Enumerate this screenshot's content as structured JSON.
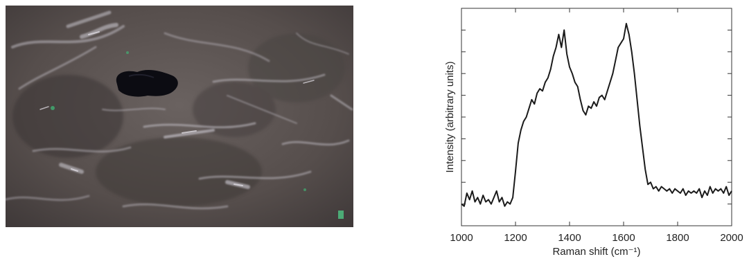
{
  "chart_data": {
    "type": "line",
    "xlabel": "Raman shift (cm⁻¹)",
    "ylabel": "Intensity (arbitrary units)",
    "xlim": [
      1000,
      2000
    ],
    "ylim": [
      0,
      1
    ],
    "x_ticks": [
      1000,
      1200,
      1400,
      1600,
      1800,
      2000
    ],
    "x_tick_labels": [
      "1000",
      "1200",
      "1400",
      "1600",
      "1800",
      "2000"
    ],
    "y_ticks": [
      0.1,
      0.2,
      0.3,
      0.4,
      0.5,
      0.6,
      0.7,
      0.8,
      0.9
    ],
    "y_tick_labels_shown": false,
    "grid": false,
    "series": [
      {
        "color": "#1a1a1a",
        "x": [
          1000,
          1010,
          1020,
          1030,
          1040,
          1050,
          1060,
          1070,
          1080,
          1090,
          1100,
          1110,
          1120,
          1130,
          1140,
          1150,
          1160,
          1170,
          1180,
          1190,
          1200,
          1210,
          1220,
          1230,
          1240,
          1250,
          1260,
          1270,
          1280,
          1290,
          1300,
          1310,
          1320,
          1330,
          1340,
          1350,
          1360,
          1370,
          1380,
          1390,
          1400,
          1410,
          1420,
          1430,
          1440,
          1450,
          1460,
          1470,
          1480,
          1490,
          1500,
          1510,
          1520,
          1530,
          1540,
          1550,
          1560,
          1570,
          1580,
          1590,
          1600,
          1610,
          1620,
          1630,
          1640,
          1650,
          1660,
          1670,
          1680,
          1690,
          1700,
          1710,
          1720,
          1730,
          1740,
          1750,
          1760,
          1770,
          1780,
          1790,
          1800,
          1810,
          1820,
          1830,
          1840,
          1850,
          1860,
          1870,
          1880,
          1890,
          1900,
          1910,
          1920,
          1930,
          1940,
          1950,
          1960,
          1970,
          1980,
          1990,
          2000
        ],
        "y": [
          0.1,
          0.09,
          0.15,
          0.12,
          0.16,
          0.11,
          0.13,
          0.1,
          0.14,
          0.11,
          0.12,
          0.1,
          0.13,
          0.16,
          0.11,
          0.13,
          0.09,
          0.11,
          0.1,
          0.13,
          0.25,
          0.38,
          0.44,
          0.48,
          0.5,
          0.54,
          0.58,
          0.56,
          0.61,
          0.63,
          0.62,
          0.66,
          0.68,
          0.72,
          0.78,
          0.82,
          0.88,
          0.82,
          0.9,
          0.79,
          0.73,
          0.7,
          0.66,
          0.64,
          0.58,
          0.53,
          0.51,
          0.55,
          0.54,
          0.57,
          0.55,
          0.59,
          0.6,
          0.58,
          0.62,
          0.66,
          0.7,
          0.76,
          0.82,
          0.84,
          0.86,
          0.93,
          0.88,
          0.8,
          0.7,
          0.58,
          0.46,
          0.36,
          0.26,
          0.19,
          0.2,
          0.17,
          0.18,
          0.16,
          0.18,
          0.17,
          0.16,
          0.17,
          0.15,
          0.17,
          0.16,
          0.15,
          0.17,
          0.14,
          0.16,
          0.15,
          0.16,
          0.15,
          0.17,
          0.13,
          0.16,
          0.14,
          0.18,
          0.15,
          0.17,
          0.16,
          0.17,
          0.15,
          0.18,
          0.14,
          0.16
        ]
      }
    ]
  },
  "photo": {
    "subject": "dark-particle-on-fabric",
    "background_color": "#5b5350",
    "particle_color": "#0c0c12",
    "highlight_color": "#c8c4cc"
  }
}
